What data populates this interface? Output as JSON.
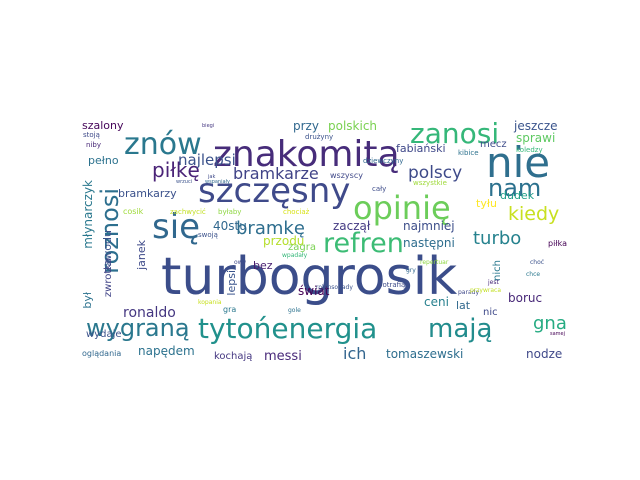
{
  "words": [
    {
      "text": "turbogrosik",
      "color": "#3b4d8a"
    },
    {
      "text": "znakomitą",
      "color": "#472c7a"
    },
    {
      "text": "nie",
      "color": "#2f6f8e"
    },
    {
      "text": "szczęsny",
      "color": "#3f4a8a"
    },
    {
      "text": "znów",
      "color": "#2a788e"
    },
    {
      "text": "zanosi",
      "color": "#35b779"
    },
    {
      "text": "opinię",
      "color": "#6ccd5a"
    },
    {
      "text": "się",
      "color": "#31688e"
    },
    {
      "text": "refren",
      "color": "#3cbc75"
    },
    {
      "text": "nam",
      "color": "#2c718e"
    },
    {
      "text": "wygraną",
      "color": "#2a788e"
    },
    {
      "text": "tytońenergia",
      "color": "#21918c"
    },
    {
      "text": "mają",
      "color": "#228c8d"
    },
    {
      "text": "roznosi",
      "color": "#2d6f8e"
    },
    {
      "text": "piłkę",
      "color": "#4a2377"
    },
    {
      "text": "kiedy",
      "color": "#c8e020"
    },
    {
      "text": "turbo",
      "color": "#26828e"
    },
    {
      "text": "bramkę",
      "color": "#2e6e8e"
    },
    {
      "text": "polscy",
      "color": "#3e4a89"
    },
    {
      "text": "najlepsi",
      "color": "#3b528b"
    },
    {
      "text": "bramkarze",
      "color": "#404387"
    },
    {
      "text": "gna",
      "color": "#25ab82"
    },
    {
      "text": "ich",
      "color": "#32658e"
    },
    {
      "text": "ronaldo",
      "color": "#453781"
    },
    {
      "text": "messi",
      "color": "#482979"
    },
    {
      "text": "przy",
      "color": "#31688e"
    },
    {
      "text": "polskich",
      "color": "#7ad151"
    },
    {
      "text": "jeszcze",
      "color": "#3a548c"
    },
    {
      "text": "sprawi",
      "color": "#5ec962"
    },
    {
      "text": "mecz",
      "color": "#3e4c8a"
    },
    {
      "text": "fabiański",
      "color": "#3f4889"
    },
    {
      "text": "szalony",
      "color": "#450559"
    },
    {
      "text": "pełno",
      "color": "#2c728e"
    },
    {
      "text": "bramkarzy",
      "color": "#3b518b"
    },
    {
      "text": "zaczął",
      "color": "#443a83"
    },
    {
      "text": "najmniej",
      "color": "#3d4e8a"
    },
    {
      "text": "następni",
      "color": "#2e6d8e"
    },
    {
      "text": "dudek",
      "color": "#1f9e89"
    },
    {
      "text": "tyłu",
      "color": "#fde725"
    },
    {
      "text": "przodu",
      "color": "#b5de2b"
    },
    {
      "text": "40stu",
      "color": "#31688e"
    },
    {
      "text": "zawodu",
      "color": "#3b528b"
    },
    {
      "text": "był",
      "color": "#2c728e"
    },
    {
      "text": "młynarczyk",
      "color": "#2a788e"
    },
    {
      "text": "zwrotka",
      "color": "#414487"
    },
    {
      "text": "janek",
      "color": "#3e4a89"
    },
    {
      "text": "lepsi",
      "color": "#3a548c"
    },
    {
      "text": "świat",
      "color": "#440154"
    },
    {
      "text": "ceni",
      "color": "#27808e"
    },
    {
      "text": "boruc",
      "color": "#482878"
    },
    {
      "text": "lat",
      "color": "#31688e"
    },
    {
      "text": "nic",
      "color": "#3e4989"
    },
    {
      "text": "nich",
      "color": "#2a788e"
    },
    {
      "text": "bez",
      "color": "#481f70"
    },
    {
      "text": "zagra",
      "color": "#7ad151"
    },
    {
      "text": "wydaje",
      "color": "#3b528b"
    },
    {
      "text": "napędem",
      "color": "#2c728e"
    },
    {
      "text": "kochają",
      "color": "#453781"
    },
    {
      "text": "tomaszewski",
      "color": "#2e6e8e"
    },
    {
      "text": "nodze",
      "color": "#3f4889"
    },
    {
      "text": "oglądania",
      "color": "#31688e"
    },
    {
      "text": "piłka",
      "color": "#440154"
    },
    {
      "text": "gra",
      "color": "#2a788e"
    },
    {
      "text": "cosik",
      "color": "#9fda3a"
    },
    {
      "text": "swoją",
      "color": "#3b528b"
    },
    {
      "text": "zachwycić",
      "color": "#c2df23"
    },
    {
      "text": "byłaby",
      "color": "#8fd744"
    },
    {
      "text": "chociaż",
      "color": "#d8e219"
    },
    {
      "text": "cały",
      "color": "#3e4c8a"
    },
    {
      "text": "wszyscy",
      "color": "#3f4889"
    },
    {
      "text": "wszystkie",
      "color": "#9fda3a"
    },
    {
      "text": "dziewczyny",
      "color": "#31688e"
    },
    {
      "text": "drużyny",
      "color": "#3b528b"
    },
    {
      "text": "kibice",
      "color": "#2c728e"
    },
    {
      "text": "koledzy",
      "color": "#35b779"
    },
    {
      "text": "stoją",
      "color": "#3e4a89"
    },
    {
      "text": "niby",
      "color": "#482878"
    },
    {
      "text": "wrzuci",
      "color": "#3b528b"
    },
    {
      "text": "wspaniały",
      "color": "#31688e"
    },
    {
      "text": "jak",
      "color": "#3e4989"
    },
    {
      "text": "biegi",
      "color": "#453781"
    },
    {
      "text": "chce",
      "color": "#2a788e"
    },
    {
      "text": "parady",
      "color": "#3f4889"
    },
    {
      "text": "choć",
      "color": "#3b528b"
    },
    {
      "text": "jest",
      "color": "#482979"
    },
    {
      "text": "samej",
      "color": "#440154"
    },
    {
      "text": "potrafią",
      "color": "#3e4c8a"
    },
    {
      "text": "kopania",
      "color": "#c8e020"
    },
    {
      "text": "repertuar",
      "color": "#8fd744"
    },
    {
      "text": "przywraca",
      "color": "#c2df23"
    },
    {
      "text": "robinsonady",
      "color": "#3b528b"
    },
    {
      "text": "gole",
      "color": "#2c728e"
    },
    {
      "text": "wpadały",
      "color": "#35b779"
    },
    {
      "text": "owy",
      "color": "#3e4989"
    },
    {
      "text": "gry",
      "color": "#31688e"
    }
  ]
}
